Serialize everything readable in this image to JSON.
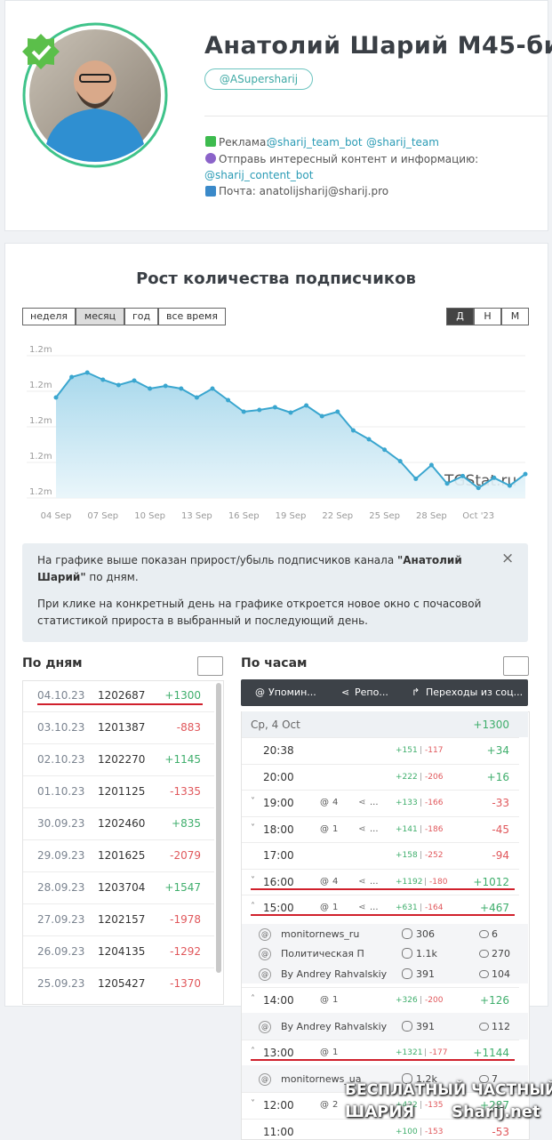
{
  "profile": {
    "name": "Анатолий Шарий М45-би",
    "handle": "@ASupersharij",
    "ad_label": "Реклама:",
    "ad_links": [
      "@sharij_team_bot",
      "@sharij_team"
    ],
    "send_text": "Отправь интересный контент и информацию:",
    "send_link": "@sharij_content_bot",
    "mail": "Почта: anatolijsharij@sharij.pro"
  },
  "stats": {
    "title": "Рост количества подписчиков",
    "periods": [
      "неделя",
      "месяц",
      "год",
      "все время"
    ],
    "active_period": 1,
    "granularity": [
      "Д",
      "Н",
      "М"
    ],
    "active_granularity": 0,
    "watermark": "TGStat.ru"
  },
  "chart_data": {
    "type": "line",
    "color": "#3aa6cf",
    "fill": "#bfe3f1",
    "grid": true,
    "categories": [
      "04 Sep",
      null,
      null,
      "07 Sep",
      null,
      null,
      "10 Sep",
      null,
      null,
      "13 Sep",
      null,
      null,
      "16 Sep",
      null,
      null,
      "19 Sep",
      null,
      null,
      "22 Sep",
      null,
      null,
      "25 Sep",
      null,
      null,
      "28 Sep",
      null,
      null,
      "Oct '23",
      null,
      null,
      null
    ],
    "values": [
      1211300,
      1213600,
      1214100,
      1213300,
      1212700,
      1213200,
      1212300,
      1212600,
      1212300,
      1211300,
      1212300,
      1211000,
      1209700,
      1209900,
      1210200,
      1209600,
      1210400,
      1209200,
      1209700,
      1207600,
      1206600,
      1205427,
      1204135,
      1202157,
      1203704,
      1201625,
      1202460,
      1201125,
      1202270,
      1201387,
      1202687
    ],
    "ylim": [
      1200000,
      1216000
    ],
    "yticks": [
      {
        "value": 1200000,
        "label": "1.2m"
      },
      {
        "value": 1204000,
        "label": "1.2m"
      },
      {
        "value": 1208000,
        "label": "1.2m"
      },
      {
        "value": 1212000,
        "label": "1.2m"
      },
      {
        "value": 1216000,
        "label": "1.2m"
      }
    ]
  },
  "info": {
    "p1": [
      "На графике выше показан прирост/убыль подписчиков канала ",
      "\"Анатолий Шарий\"",
      " по дням."
    ],
    "p2": "При клике на конкретный день на графике откроется новое окно с почасовой статистикой прироста в выбранный и последующий день.",
    "close": "×"
  },
  "daily": {
    "title": "По дням",
    "rows": [
      [
        "04.10.23",
        "1202687",
        "+1300"
      ],
      [
        "03.10.23",
        "1201387",
        "-883"
      ],
      [
        "02.10.23",
        "1202270",
        "+1145"
      ],
      [
        "01.10.23",
        "1201125",
        "-1335"
      ],
      [
        "30.09.23",
        "1202460",
        "+835"
      ],
      [
        "29.09.23",
        "1201625",
        "-2079"
      ],
      [
        "28.09.23",
        "1203704",
        "+1547"
      ],
      [
        "27.09.23",
        "1202157",
        "-1978"
      ],
      [
        "26.09.23",
        "1204135",
        "-1292"
      ],
      [
        "25.09.23",
        "1205427",
        "-1370"
      ]
    ]
  },
  "hourly": {
    "title": "По часам",
    "tabs": [
      "Упомин...",
      "Репо...",
      "Переходы из соц..."
    ],
    "day": "Ср, 4 Oct",
    "day_total": "+1300",
    "rows": [
      {
        "time": "20:38",
        "plus": "+151",
        "minus": "-117",
        "total": "+34"
      },
      {
        "time": "20:00",
        "plus": "+222",
        "minus": "-206",
        "total": "+16"
      },
      {
        "time": "19:00",
        "mentions": "4",
        "reposts": "...",
        "plus": "+133",
        "minus": "-166",
        "total": "-33"
      },
      {
        "time": "18:00",
        "mentions": "1",
        "reposts": "...",
        "plus": "+141",
        "minus": "-186",
        "total": "-45"
      },
      {
        "time": "17:00",
        "plus": "+158",
        "minus": "-252",
        "total": "-94"
      },
      {
        "time": "16:00",
        "mentions": "4",
        "reposts": "...",
        "plus": "+1192",
        "minus": "-180",
        "total": "+1012"
      },
      {
        "time": "15:00",
        "mentions": "1",
        "reposts": "...",
        "plus": "+631",
        "minus": "-164",
        "total": "+467",
        "subs": [
          {
            "name": "monitornews_ru",
            "subs": "306",
            "views": "6"
          },
          {
            "name": "Политическая П",
            "subs": "1.1k",
            "views": "270"
          },
          {
            "name": "By Andrey Rahvalskiy",
            "subs": "391",
            "views": "104"
          }
        ]
      },
      {
        "time": "14:00",
        "mentions": "1",
        "plus": "+326",
        "minus": "-200",
        "total": "+126",
        "subs": [
          {
            "name": "By Andrey Rahvalskiy",
            "subs": "391",
            "views": "112"
          }
        ]
      },
      {
        "time": "13:00",
        "mentions": "1",
        "plus": "+1321",
        "minus": "-177",
        "total": "+1144",
        "subs": [
          {
            "name": "monitornews_ua",
            "subs": "1.2k",
            "views": "7"
          }
        ]
      },
      {
        "time": "12:00",
        "mentions": "2",
        "plus": "+422",
        "minus": "-135",
        "total": "+287"
      },
      {
        "time": "11:00",
        "plus": "+100",
        "minus": "-153",
        "total": "-53"
      }
    ]
  },
  "footer_watermark": {
    "line1": "БЕСПЛАТНЫЙ ЧАСТНЫЙ",
    "line2a": "ШАРИЯ",
    "line2b": "Sharij.net"
  }
}
